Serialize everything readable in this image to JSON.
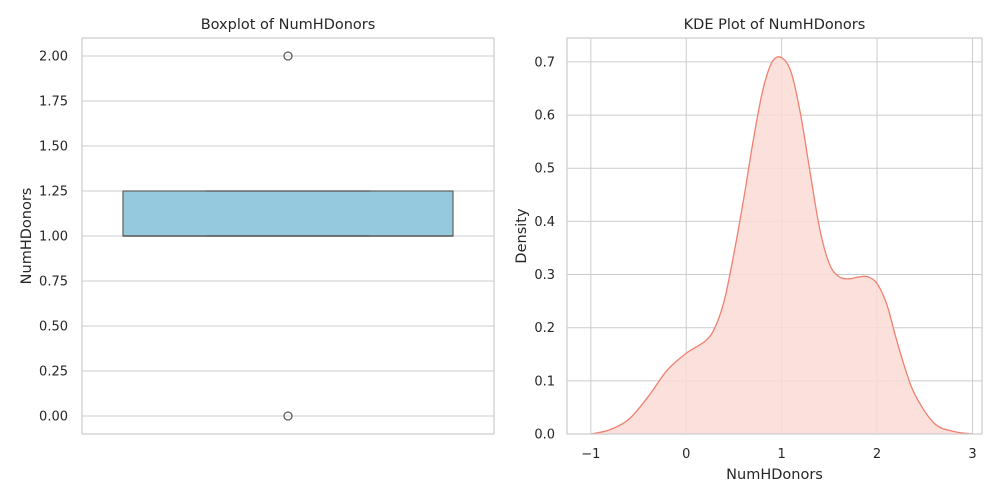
{
  "chart_data": [
    {
      "type": "box",
      "title": "Boxplot of NumHDonors",
      "xlabel": "",
      "ylabel": "NumHDonors",
      "ylim": [
        -0.1,
        2.1
      ],
      "yticks": [
        0.0,
        0.25,
        0.5,
        0.75,
        1.0,
        1.25,
        1.5,
        1.75,
        2.0
      ],
      "ytick_labels": [
        "0.00",
        "0.25",
        "0.50",
        "0.75",
        "1.00",
        "1.25",
        "1.50",
        "1.75",
        "2.00"
      ],
      "box": {
        "q1": 1.0,
        "median": 1.0,
        "q3": 1.25,
        "whisker_low": 1.0,
        "whisker_high": 1.25,
        "outliers": [
          0.0,
          2.0
        ]
      },
      "color": "#95c9de",
      "edge_color": "#5f5f5f",
      "grid": true
    },
    {
      "type": "area",
      "title": "KDE Plot of NumHDonors",
      "xlabel": "NumHDonors",
      "ylabel": "Density",
      "xlim": [
        -1.25,
        3.1
      ],
      "ylim": [
        0.0,
        0.745
      ],
      "xticks": [
        -1,
        0,
        1,
        2,
        3
      ],
      "xtick_labels": [
        "−1",
        "0",
        "1",
        "2",
        "3"
      ],
      "yticks": [
        0.0,
        0.1,
        0.2,
        0.3,
        0.4,
        0.5,
        0.6,
        0.7
      ],
      "ytick_labels": [
        "0.0",
        "0.1",
        "0.2",
        "0.3",
        "0.4",
        "0.5",
        "0.6",
        "0.7"
      ],
      "x": [
        -1.0,
        -0.8,
        -0.6,
        -0.4,
        -0.2,
        0.0,
        0.2,
        0.3,
        0.4,
        0.5,
        0.6,
        0.7,
        0.8,
        0.9,
        1.0,
        1.1,
        1.2,
        1.3,
        1.4,
        1.5,
        1.6,
        1.7,
        1.8,
        1.9,
        2.0,
        2.1,
        2.2,
        2.3,
        2.4,
        2.6,
        2.8,
        3.0
      ],
      "y": [
        0.0,
        0.008,
        0.028,
        0.07,
        0.12,
        0.152,
        0.175,
        0.2,
        0.252,
        0.34,
        0.44,
        0.55,
        0.645,
        0.7,
        0.708,
        0.68,
        0.6,
        0.49,
        0.385,
        0.32,
        0.296,
        0.292,
        0.295,
        0.296,
        0.283,
        0.245,
        0.18,
        0.12,
        0.073,
        0.02,
        0.005,
        0.0
      ],
      "line_color": "#f08070",
      "fill_color": "#fadbd6",
      "grid": true
    }
  ]
}
